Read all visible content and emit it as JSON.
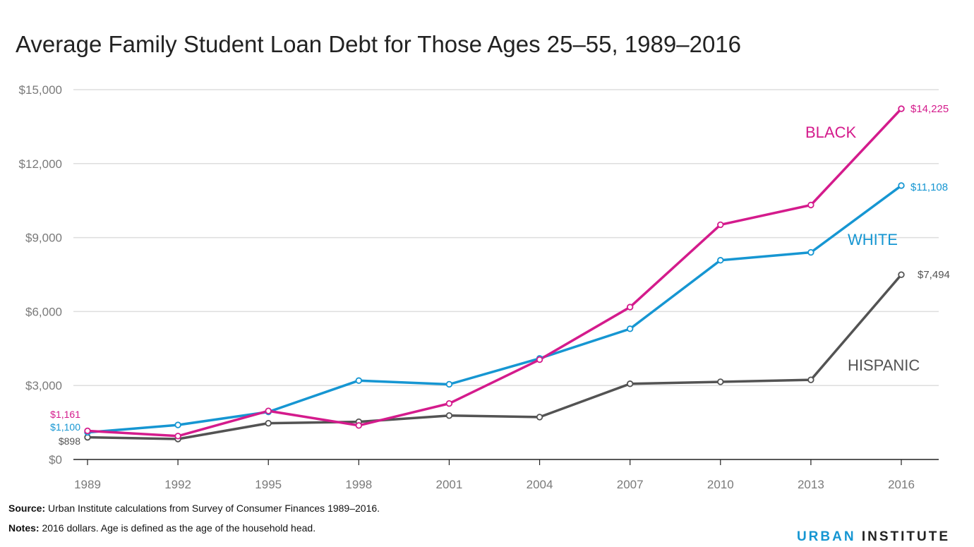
{
  "title": "Average Family Student Loan Debt for Those Ages 25–55, 1989–2016",
  "footer": {
    "source_label": "Source:",
    "source_text": "Urban Institute calculations from Survey of Consumer Finances 1989–2016.",
    "notes_label": "Notes:",
    "notes_text": "2016 dollars. Age is defined as the age of the household head."
  },
  "brand": {
    "part1": "URBAN",
    "part2": "INSTITUTE"
  },
  "colors": {
    "black_series": "#d41b8c",
    "white_series": "#1696d2",
    "hispanic_series": "#535353",
    "grid": "#dedede",
    "axis": "#222222",
    "tick_text": "#7a7a7a",
    "brand_accent": "#1696d2"
  },
  "chart_data": {
    "type": "line",
    "title": "Average Family Student Loan Debt for Those Ages 25–55, 1989–2016",
    "xlabel": "",
    "ylabel": "",
    "x": [
      1989,
      1992,
      1995,
      1998,
      2001,
      2004,
      2007,
      2010,
      2013,
      2016
    ],
    "x_tick_labels": [
      "1989",
      "1992",
      "1995",
      "1998",
      "2001",
      "2004",
      "2007",
      "2010",
      "2013",
      "2016"
    ],
    "ylim": [
      0,
      15000
    ],
    "y_ticks": [
      0,
      3000,
      6000,
      9000,
      12000,
      15000
    ],
    "y_tick_labels": [
      "$0",
      "$3,000",
      "$6,000",
      "$9,000",
      "$12,000",
      "$15,000"
    ],
    "grid": true,
    "legend": "inline labels at right",
    "series": [
      {
        "key": "black",
        "name": "BLACK",
        "color": "#d41b8c",
        "values": [
          1161,
          950,
          1970,
          1380,
          2270,
          4050,
          6180,
          9520,
          10320,
          14225
        ],
        "start_label": "$1,161",
        "end_label": "$14,225"
      },
      {
        "key": "white",
        "name": "WHITE",
        "color": "#1696d2",
        "values": [
          1100,
          1400,
          1930,
          3200,
          3050,
          4100,
          5300,
          8080,
          8400,
          11108
        ],
        "start_label": "$1,100",
        "end_label": "$11,108"
      },
      {
        "key": "hispanic",
        "name": "HISPANIC",
        "color": "#535353",
        "values": [
          898,
          830,
          1470,
          1530,
          1780,
          1720,
          3070,
          3150,
          3230,
          7494
        ],
        "start_label": "$898",
        "end_label": "$7,494"
      }
    ]
  }
}
